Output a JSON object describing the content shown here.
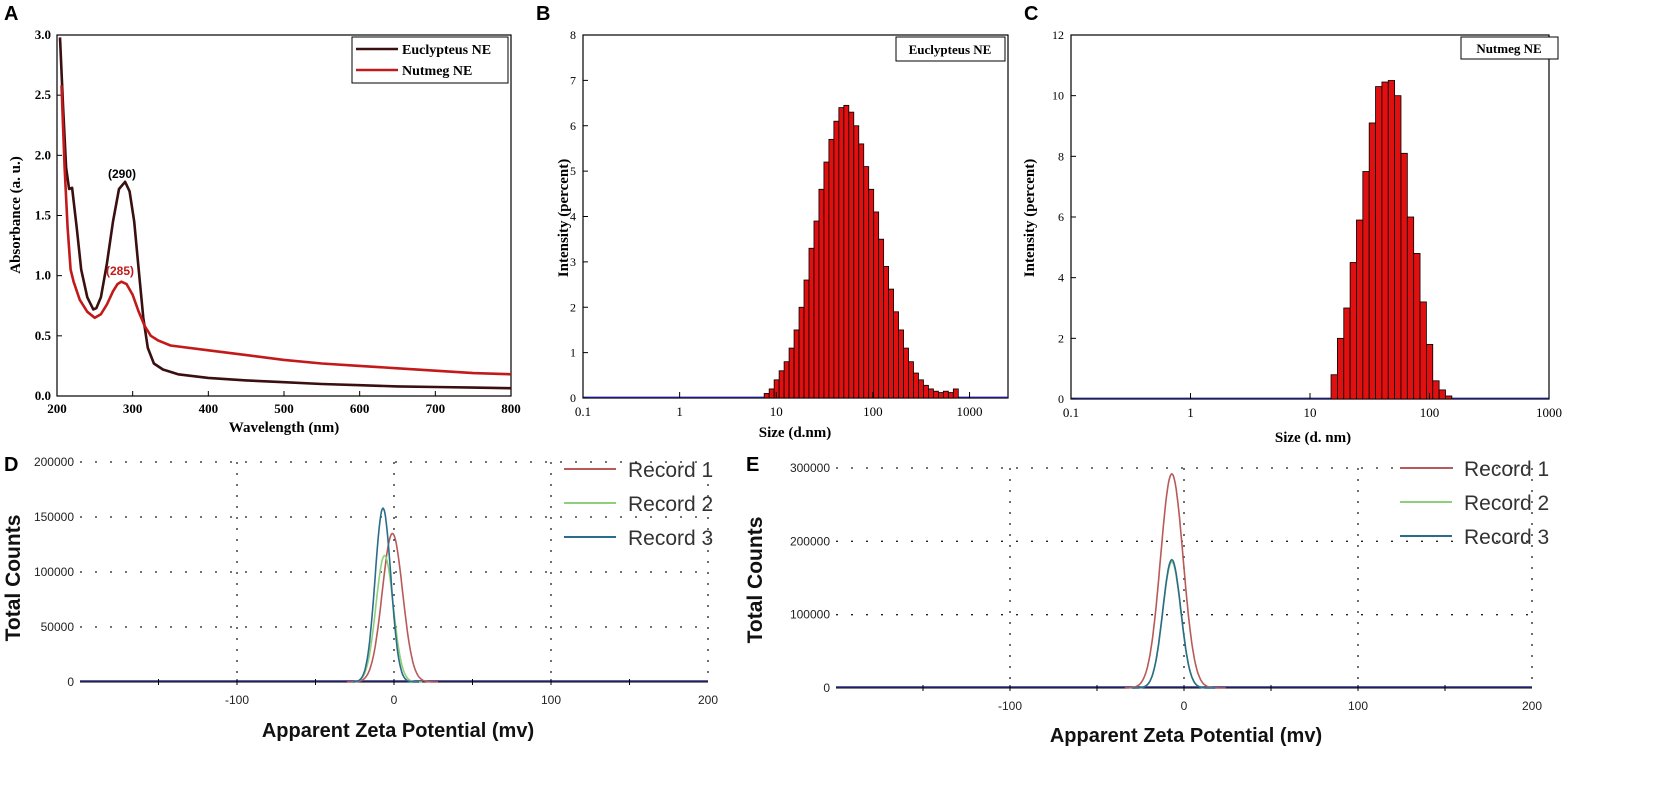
{
  "chart_data": [
    {
      "panel": "A",
      "type": "line",
      "title": "",
      "xlabel": "Wavelength (nm)",
      "ylabel": "Absorbance (a. u.)",
      "xlim": [
        200,
        800
      ],
      "ylim": [
        0,
        3.0
      ],
      "xticks": [
        "200",
        "300",
        "400",
        "500",
        "600",
        "700",
        "800"
      ],
      "yticks": [
        "0.0",
        "0.5",
        "1.0",
        "1.5",
        "2.0",
        "2.5",
        "3.0"
      ],
      "legend": [
        "Euclypteus NE",
        "Nutmeg NE"
      ],
      "legend_position": "top-right",
      "annotations": [
        "(290)",
        "(285)"
      ],
      "colors": [
        "#3a0f0f",
        "#c21a1a"
      ],
      "series": [
        {
          "name": "Euclypteus NE",
          "x": [
            204,
            208,
            212,
            216,
            220,
            226,
            232,
            240,
            248,
            252,
            258,
            266,
            274,
            282,
            290,
            296,
            302,
            308,
            314,
            320,
            328,
            340,
            360,
            400,
            450,
            500,
            550,
            600,
            650,
            700,
            750,
            800
          ],
          "y": [
            2.98,
            2.4,
            1.9,
            1.72,
            1.73,
            1.4,
            1.05,
            0.82,
            0.72,
            0.73,
            0.82,
            1.1,
            1.45,
            1.72,
            1.78,
            1.7,
            1.45,
            1.05,
            0.65,
            0.4,
            0.27,
            0.22,
            0.18,
            0.15,
            0.13,
            0.115,
            0.1,
            0.09,
            0.08,
            0.075,
            0.07,
            0.065
          ]
        },
        {
          "name": "Nutmeg NE",
          "x": [
            206,
            210,
            214,
            218,
            222,
            230,
            240,
            250,
            258,
            266,
            274,
            280,
            285,
            292,
            300,
            308,
            316,
            324,
            334,
            350,
            400,
            450,
            500,
            550,
            600,
            650,
            700,
            750,
            800
          ],
          "y": [
            2.58,
            1.9,
            1.4,
            1.05,
            0.95,
            0.8,
            0.7,
            0.65,
            0.68,
            0.76,
            0.87,
            0.93,
            0.95,
            0.93,
            0.84,
            0.7,
            0.58,
            0.5,
            0.46,
            0.42,
            0.38,
            0.34,
            0.3,
            0.27,
            0.25,
            0.23,
            0.21,
            0.19,
            0.18
          ]
        }
      ]
    },
    {
      "panel": "B",
      "type": "bar",
      "scale_x": "log",
      "xlabel": "Size (d.nm)",
      "ylabel": "Intensity (percent)",
      "legend": [
        "Euclypteus NE"
      ],
      "xlim": [
        0.1,
        2500
      ],
      "ylim": [
        0,
        8
      ],
      "xticks": [
        "0.1",
        "1",
        "10",
        "100",
        "1000"
      ],
      "yticks": [
        "0",
        "1",
        "2",
        "3",
        "4",
        "5",
        "6",
        "7",
        "8"
      ],
      "bar_start": 7.5,
      "bar_log_step": 0.0515,
      "values": [
        0.1,
        0.2,
        0.4,
        0.6,
        0.8,
        1.1,
        1.5,
        2,
        2.6,
        3.3,
        3.9,
        4.6,
        5.2,
        5.7,
        6.1,
        6.4,
        6.45,
        6.3,
        6.0,
        5.6,
        5.1,
        4.6,
        4.1,
        3.5,
        2.9,
        2.4,
        1.9,
        1.5,
        1.1,
        0.8,
        0.55,
        0.4,
        0.28,
        0.2,
        0.15,
        0.12,
        0.15,
        0.12,
        0.2
      ]
    },
    {
      "panel": "C",
      "type": "bar",
      "scale_x": "log",
      "xlabel": "Size (d. nm)",
      "ylabel": "Intensity (percent)",
      "legend": [
        "Nutmeg NE"
      ],
      "xlim": [
        0.1,
        1000
      ],
      "ylim": [
        0,
        12
      ],
      "xticks": [
        "0.1",
        "1",
        "10",
        "100",
        "1000"
      ],
      "yticks": [
        "0",
        "2",
        "4",
        "6",
        "8",
        "10",
        "12"
      ],
      "bar_start": 15.0,
      "bar_log_step": 0.0532,
      "values": [
        0.8,
        2,
        3,
        4.5,
        5.9,
        7.5,
        9.1,
        10.3,
        10.45,
        10.5,
        10,
        8.1,
        6,
        4.8,
        3.2,
        1.8,
        0.6,
        0.3,
        0.1
      ]
    },
    {
      "panel": "D",
      "type": "line",
      "xlabel": "Apparent Zeta Potential (mv)",
      "ylabel": "Total Counts",
      "xlim": [
        -200,
        200
      ],
      "ylim": [
        0,
        200000
      ],
      "xticks": [
        "-100",
        "0",
        "100",
        "200"
      ],
      "yticks": [
        "0",
        "50000",
        "100000",
        "150000",
        "200000"
      ],
      "legend": [
        "Record 1",
        "Record 2",
        "Record 3"
      ],
      "colors": [
        "#b85a5a",
        "#8ed07a",
        "#2b6c8c"
      ],
      "series": [
        {
          "name": "Record 1",
          "center": -1,
          "sigma": 6.5,
          "peak": 135000,
          "x0": -30,
          "x1": 28
        },
        {
          "name": "Record 2",
          "center": -6,
          "sigma": 5.5,
          "peak": 115000,
          "x0": -26,
          "x1": 18
        },
        {
          "name": "Record 3",
          "center": -7,
          "sigma": 5,
          "peak": 158000,
          "x0": -26,
          "x1": 16
        }
      ],
      "baseline_color": "#2a2a7a"
    },
    {
      "panel": "E",
      "type": "line",
      "xlabel": "Apparent Zeta Potential (mv)",
      "ylabel": "Total Counts",
      "xlim": [
        -200,
        200
      ],
      "ylim": [
        0,
        300000
      ],
      "xticks": [
        "-100",
        "0",
        "100",
        "200"
      ],
      "yticks": [
        "0",
        "100000",
        "200000",
        "300000"
      ],
      "legend": [
        "Record 1",
        "Record 2",
        "Record 3"
      ],
      "colors": [
        "#b85a5a",
        "#8ed07a",
        "#2b6c8c"
      ],
      "series": [
        {
          "name": "Record 1",
          "center": -7,
          "sigma": 6.5,
          "peak": 292000,
          "x0": -34,
          "x1": 24
        },
        {
          "name": "Record 2",
          "center": -7,
          "sigma": 5.2,
          "peak": 172000,
          "x0": -30,
          "x1": 18
        },
        {
          "name": "Record 3",
          "center": -7,
          "sigma": 5.2,
          "peak": 175000,
          "x0": -30,
          "x1": 18
        }
      ],
      "baseline_color": "#2a2a7a"
    }
  ],
  "panel_letters": [
    "A",
    "B",
    "C",
    "D",
    "E"
  ],
  "bar_color": "#e01010"
}
